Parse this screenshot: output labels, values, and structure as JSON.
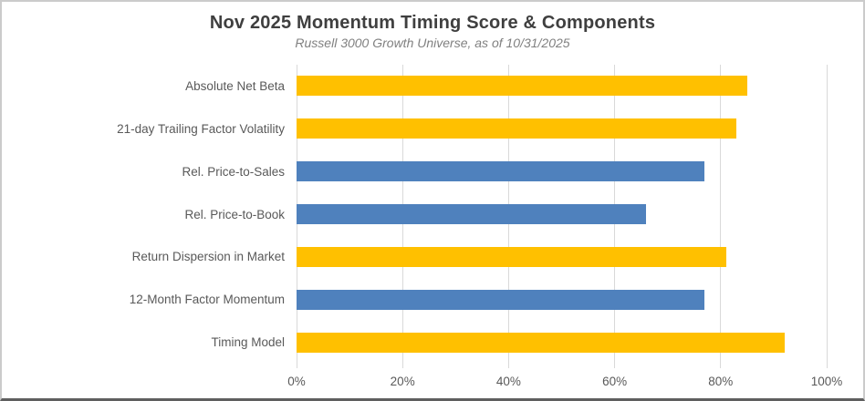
{
  "chart_data": {
    "type": "bar",
    "orientation": "horizontal",
    "title": "Nov 2025 Momentum Timing Score & Components",
    "subtitle": "Russell 3000 Growth Universe, as of 10/31/2025",
    "categories": [
      "Absolute Net Beta",
      "21-day Trailing Factor Volatility",
      "Rel. Price-to-Sales",
      "Rel. Price-to-Book",
      "Return Dispersion in Market",
      "12-Month Factor Momentum",
      "Timing Model"
    ],
    "values": [
      85,
      83,
      77,
      66,
      81,
      77,
      92
    ],
    "bar_colors": [
      "#FFC000",
      "#FFC000",
      "#4F81BD",
      "#4F81BD",
      "#FFC000",
      "#4F81BD",
      "#FFC000"
    ],
    "x_axis": {
      "min": 0,
      "max": 100,
      "tick_values": [
        0,
        20,
        40,
        60,
        80,
        100
      ],
      "tick_labels": [
        "0%",
        "20%",
        "40%",
        "60%",
        "80%",
        "100%"
      ]
    },
    "grid": true,
    "legend": "none",
    "colors": {
      "gold": "#FFC000",
      "blue": "#4F81BD",
      "gridline": "#d9d9d9",
      "title_text": "#3f3f3f",
      "subtitle_text": "#808080",
      "axis_text": "#595959"
    }
  }
}
